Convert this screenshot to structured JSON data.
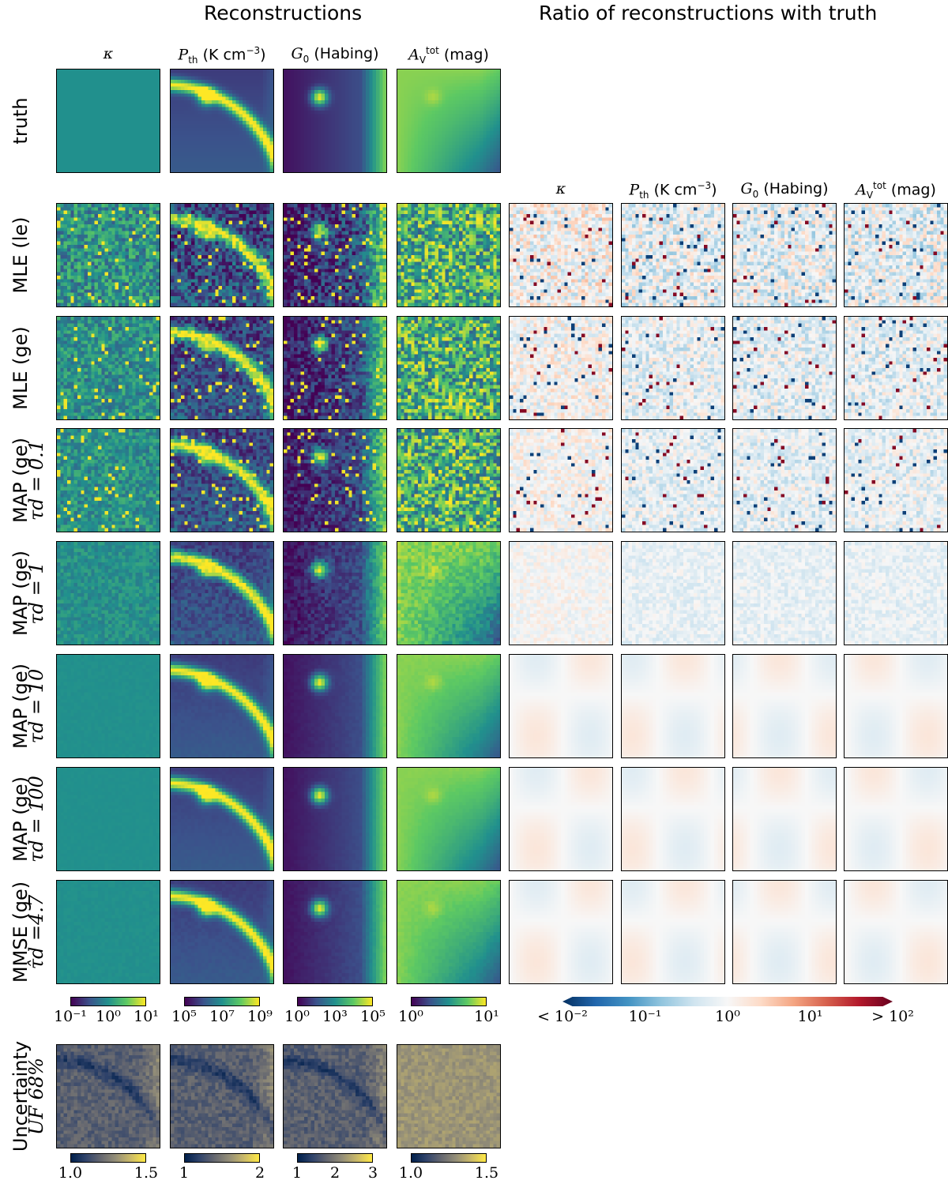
{
  "titles": {
    "left": "Reconstructions",
    "right": "Ratio of reconstructions with truth"
  },
  "columns": [
    {
      "sym": "κ",
      "unit": ""
    },
    {
      "sym": "P",
      "sub": "th",
      "unit": " (K cm",
      "sup": "−3",
      "tail": ")"
    },
    {
      "sym": "G",
      "sub": "0",
      "unit": " (Habing)"
    },
    {
      "sym": "A",
      "sub": "V",
      "sup": "tot",
      "unit": " (mag)"
    }
  ],
  "rows": [
    {
      "l1": "truth",
      "l2": ""
    },
    {
      "l1": "MLE (le)",
      "l2": ""
    },
    {
      "l1": "MLE (ge)",
      "l2": ""
    },
    {
      "l1": "MAP (ge)",
      "l2": "τd = 0.1"
    },
    {
      "l1": "MAP (ge)",
      "l2": "τd = 1"
    },
    {
      "l1": "MAP (ge)",
      "l2": "τd = 10"
    },
    {
      "l1": "MAP (ge)",
      "l2": "τd = 100"
    },
    {
      "l1": "MMSE (ge)",
      "l2": "τ̂d =4.7"
    },
    {
      "l1": "Uncertainty",
      "l2": "UF 68%"
    }
  ],
  "colors": {
    "viridis": [
      "#440154",
      "#3b528b",
      "#21908d",
      "#5dc963",
      "#fde725"
    ],
    "rdbu": [
      "#053061",
      "#2166ac",
      "#4393c3",
      "#92c5de",
      "#d1e5f0",
      "#f7f7f7",
      "#fddbc7",
      "#f4a582",
      "#d6604d",
      "#b2182b",
      "#67001f"
    ],
    "cividis": [
      "#00204c",
      "#31446b",
      "#666870",
      "#958f78",
      "#cbba69",
      "#ffe945"
    ]
  },
  "chart_data": {
    "type": "heatmap",
    "reconstruction_colorbars": [
      {
        "column": "κ",
        "scale": "log",
        "ticks": [
          "10⁻¹",
          "10⁰",
          "10¹"
        ]
      },
      {
        "column": "Pth",
        "scale": "log",
        "ticks": [
          "10⁵",
          "10⁷",
          "10⁹"
        ]
      },
      {
        "column": "G0",
        "scale": "log",
        "ticks": [
          "10⁰",
          "10³",
          "10⁵"
        ]
      },
      {
        "column": "AVtot",
        "scale": "log",
        "ticks": [
          "10⁰",
          "10¹"
        ]
      }
    ],
    "ratio_colorbar": {
      "scale": "log",
      "ticks": [
        "< 10⁻²",
        "10⁻¹",
        "10⁰",
        "10¹",
        "> 10²"
      ],
      "range": [
        0.01,
        100
      ]
    },
    "uncertainty_colorbars": [
      {
        "column": "κ",
        "ticks": [
          "1.0",
          "1.5"
        ]
      },
      {
        "column": "Pth",
        "ticks": [
          "1",
          "2"
        ]
      },
      {
        "column": "G0",
        "ticks": [
          "1",
          "2",
          "3"
        ]
      },
      {
        "column": "AVtot",
        "ticks": [
          "1.0",
          "1.5"
        ]
      }
    ]
  }
}
